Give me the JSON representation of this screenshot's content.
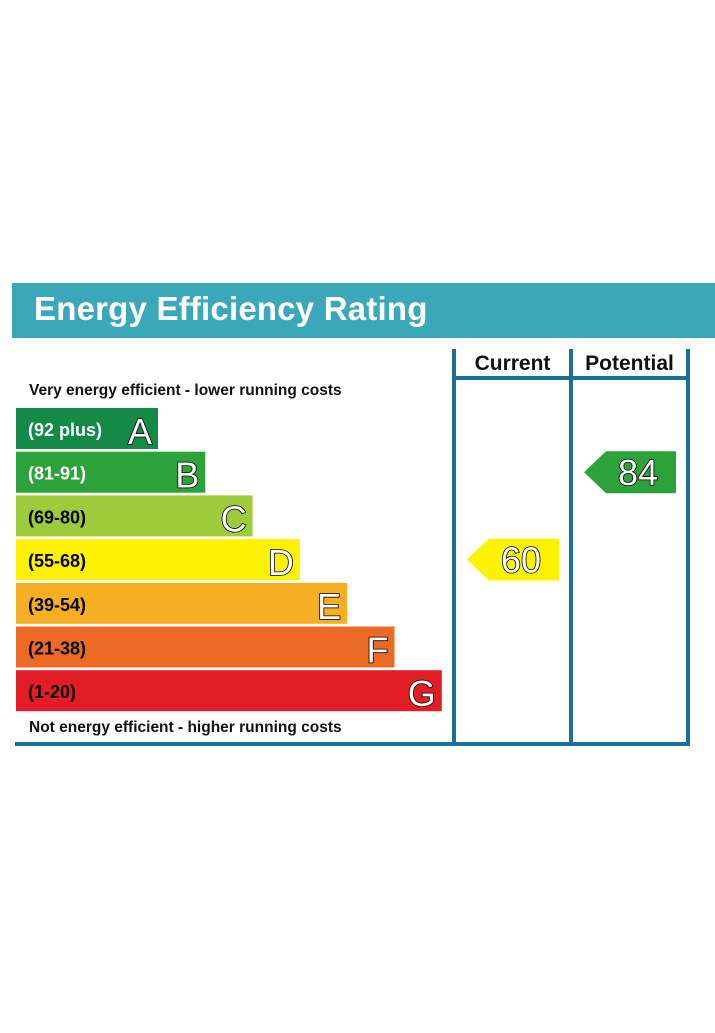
{
  "title": "Energy Efficiency Rating",
  "chart_data": {
    "type": "table",
    "columns": [
      "Current",
      "Potential"
    ],
    "top_note": "Very energy efficient - lower running costs",
    "bottom_note": "Not energy efficient - higher running costs",
    "bands": [
      {
        "letter": "A",
        "range": "(92 plus)",
        "color": "#138a45",
        "text_color": "#ffffff"
      },
      {
        "letter": "B",
        "range": "(81-91)",
        "color": "#2ca23a",
        "text_color": "#ffffff"
      },
      {
        "letter": "C",
        "range": "(69-80)",
        "color": "#9dcb3c",
        "text_color": "#000000"
      },
      {
        "letter": "D",
        "range": "(55-68)",
        "color": "#fff200",
        "text_color": "#000000"
      },
      {
        "letter": "E",
        "range": "(39-54)",
        "color": "#f6ae22",
        "text_color": "#000000"
      },
      {
        "letter": "F",
        "range": "(21-38)",
        "color": "#ec6a26",
        "text_color": "#000000"
      },
      {
        "letter": "G",
        "range": "(1-20)",
        "color": "#e31d25",
        "text_color": "#000000"
      }
    ],
    "ratings": [
      {
        "column": "Current",
        "value": 60,
        "band": "D",
        "color": "#fff200"
      },
      {
        "column": "Potential",
        "value": 84,
        "band": "B",
        "color": "#2ca23a"
      }
    ],
    "frame_color": "#1a7196"
  }
}
